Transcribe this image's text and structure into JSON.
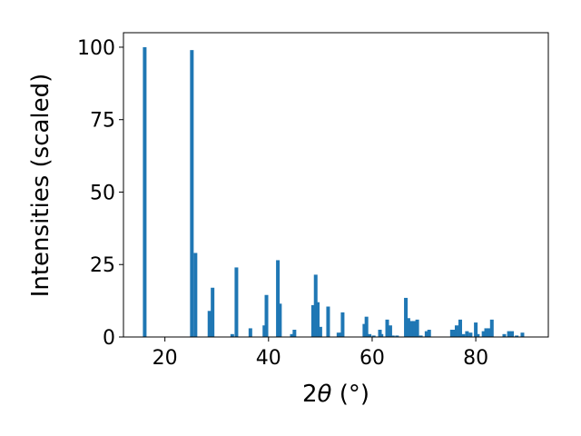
{
  "chart_data": {
    "type": "bar",
    "title": "",
    "xlabel_prefix": "2",
    "xlabel_symbol": "θ",
    "xlabel_suffix": " (°)",
    "ylabel": "Intensities (scaled)",
    "xlim": [
      12,
      94
    ],
    "ylim": [
      0,
      105
    ],
    "xticks": [
      20,
      40,
      60,
      80
    ],
    "yticks": [
      0,
      25,
      50,
      75,
      100
    ],
    "grid": false,
    "legend": "none",
    "bar_color": "#1f77b4",
    "series": [
      {
        "x": [
          16.1,
          25.2,
          25.9,
          28.6,
          29.2,
          33.0,
          33.8,
          36.5,
          39.2,
          39.6,
          41.8,
          42.2,
          44.5,
          45.0,
          48.6,
          49.1,
          49.5,
          50.0,
          51.5,
          53.5,
          54.0,
          54.3,
          58.5,
          58.9,
          59.5,
          60.3,
          61.5,
          61.8,
          62.9,
          63.5,
          64.0,
          64.8,
          66.5,
          67.0,
          67.6,
          68.1,
          68.7,
          69.4,
          70.5,
          71.0,
          75.4,
          75.8,
          76.3,
          77.0,
          77.6,
          78.3,
          79.0,
          80.0,
          80.4,
          81.5,
          82.0,
          82.6,
          83.1,
          85.5,
          86.4,
          87.0,
          87.9,
          89.0
        ],
        "y": [
          100,
          99,
          29,
          9,
          17,
          1,
          24,
          3,
          4,
          14.5,
          26.5,
          11.5,
          1,
          2.5,
          11,
          21.5,
          12,
          3.5,
          10.5,
          1.5,
          1.5,
          8.5,
          4.5,
          7,
          1,
          0.5,
          2.5,
          1,
          6,
          4,
          0.5,
          0.5,
          13.5,
          6.5,
          5.5,
          5.5,
          6,
          0.5,
          2,
          2.5,
          2.5,
          2.5,
          4,
          6,
          1,
          2,
          1.5,
          5,
          1,
          2,
          3,
          3,
          6,
          1,
          2,
          2,
          0.5,
          1.5
        ]
      }
    ]
  }
}
